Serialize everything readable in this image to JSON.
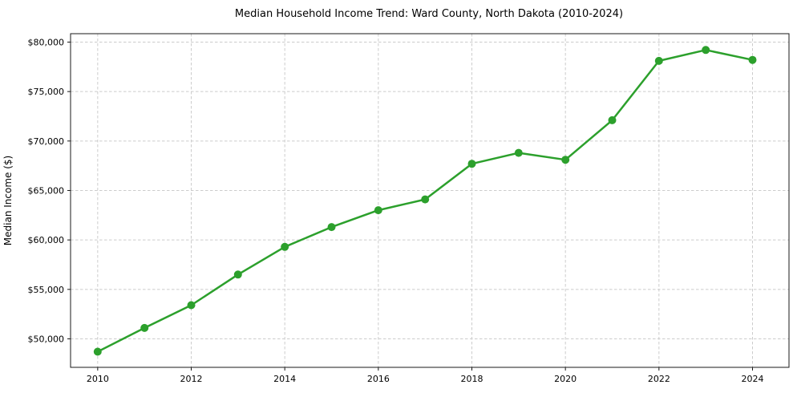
{
  "chart_data": {
    "type": "line",
    "title": "Median Household Income Trend: Ward County, North Dakota (2010-2024)",
    "xlabel": "",
    "ylabel": "Median Income ($)",
    "x": [
      2010,
      2011,
      2012,
      2013,
      2014,
      2015,
      2016,
      2017,
      2018,
      2019,
      2020,
      2021,
      2022,
      2023,
      2024
    ],
    "values": [
      48700,
      51100,
      53400,
      56500,
      59300,
      61300,
      63000,
      64100,
      67700,
      68800,
      68100,
      72100,
      78100,
      79200,
      78200
    ],
    "x_ticks": {
      "values": [
        2010,
        2012,
        2014,
        2016,
        2018,
        2020,
        2022,
        2024
      ],
      "labels": [
        "2010",
        "2012",
        "2014",
        "2016",
        "2018",
        "2020",
        "2022",
        "2024"
      ]
    },
    "y_ticks": {
      "values": [
        50000,
        55000,
        60000,
        65000,
        70000,
        75000,
        80000
      ],
      "labels": [
        "$50,000",
        "$55,000",
        "$60,000",
        "$65,000",
        "$70,000",
        "$75,000",
        "$80,000"
      ]
    },
    "xlim": [
      2009.42,
      2024.78
    ],
    "ylim": [
      47120,
      80850
    ],
    "grid": true,
    "legend_position": "none",
    "colors": {
      "line": "#2ca02c",
      "marker": "#2ca02c",
      "grid": "#cccccc",
      "spine": "#1a1a1a",
      "background": "#ffffff"
    }
  }
}
